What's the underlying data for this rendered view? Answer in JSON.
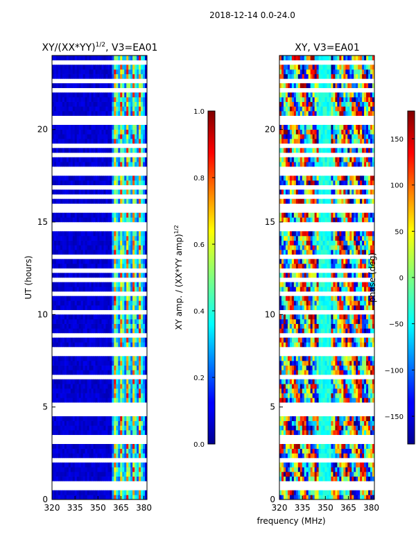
{
  "chart_data": {
    "type": "heatmap",
    "suptitle": "2018-12-14 0.0-24.0",
    "shared_xlabel": "frequency (MHz)",
    "panels": [
      {
        "id": "amp",
        "title": "XY/(XX*YY)",
        "title_sup": "1/2",
        "title_suffix": ", V3=EA01",
        "ylabel": "UT (hours)",
        "xlim": [
          320,
          382
        ],
        "ylim": [
          0,
          24
        ],
        "xticks": [
          320,
          335,
          350,
          365,
          380
        ],
        "yticks": [
          0,
          5,
          10,
          15,
          20
        ],
        "colorbar": {
          "label": "XY amp. / (XX*YY amp)",
          "label_sup": "1/2",
          "range": [
            0.0,
            1.0
          ],
          "ticks": [
            "0.0",
            "0.2",
            "0.4",
            "0.6",
            "0.8",
            "1.0"
          ],
          "tick_values": [
            0.0,
            0.2,
            0.4,
            0.6,
            0.8,
            1.0
          ],
          "colormap": "jet"
        },
        "description_of_values": "mostly ~0.05 below 360 MHz; 0.3-0.9 in 362-378 MHz band with vertical stripes"
      },
      {
        "id": "phase",
        "title": "XY, V3=EA01",
        "ylabel": "",
        "xlim": [
          320,
          382
        ],
        "ylim": [
          0,
          24
        ],
        "xticks": [
          320,
          335,
          350,
          365,
          380
        ],
        "yticks": [
          0,
          5,
          10,
          15,
          20
        ],
        "colorbar": {
          "label": "phase (deg)",
          "range": [
            -180,
            180
          ],
          "ticks": [
            "150",
            "100",
            "50",
            "0",
            "−50",
            "−100",
            "−150"
          ],
          "tick_values": [
            150,
            100,
            50,
            0,
            -50,
            -100,
            -150
          ],
          "colormap": "jet"
        },
        "description_of_values": "phase wraps across full range; vertical band near 350-355 MHz ~ -50 deg"
      }
    ]
  }
}
